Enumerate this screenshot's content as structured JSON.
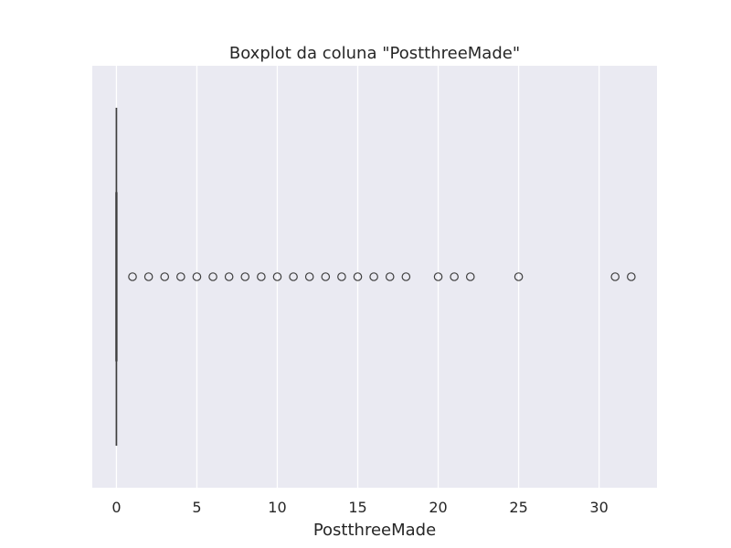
{
  "chart_data": {
    "type": "boxplot",
    "title": "Boxplot da coluna \"PostthreeMade\"",
    "xlabel": "PostthreeMade",
    "ylabel": "",
    "orientation": "horizontal",
    "xlim": [
      -1.5,
      33.6
    ],
    "xticks": [
      0,
      5,
      10,
      15,
      20,
      25,
      30
    ],
    "xtick_labels": [
      "0",
      "5",
      "10",
      "15",
      "20",
      "25",
      "30"
    ],
    "grid": true,
    "box": {
      "min": 0,
      "q1": 0,
      "median": 0,
      "q3": 0,
      "max": 0
    },
    "outliers": [
      1,
      2,
      3,
      4,
      5,
      6,
      7,
      8,
      9,
      10,
      11,
      12,
      13,
      14,
      15,
      16,
      17,
      18,
      20,
      21,
      22,
      25,
      31,
      32
    ],
    "colors": {
      "plot_background": "#eaeaf2",
      "grid": "#ffffff",
      "box_line": "#3f3f3f",
      "outlier_edge": "#3f3f3f"
    }
  }
}
